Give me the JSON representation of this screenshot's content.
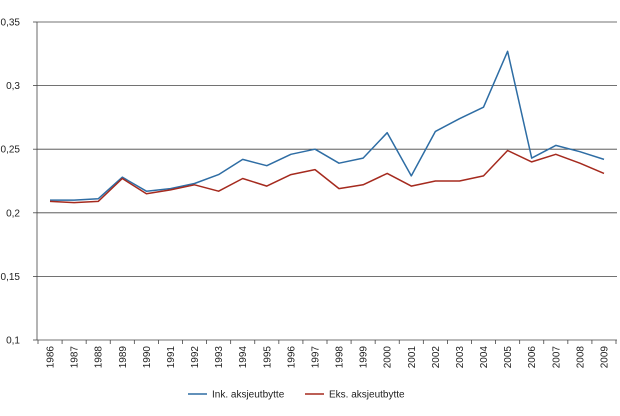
{
  "chart_data": {
    "type": "line",
    "title": "",
    "xlabel": "",
    "ylabel": "",
    "ylim": [
      0.1,
      0.35
    ],
    "yticks": [
      "0,1",
      "0,15",
      "0,2",
      "0,25",
      "0,3",
      "0,35"
    ],
    "ytick_values": [
      0.1,
      0.15,
      0.2,
      0.25,
      0.3,
      0.35
    ],
    "grid": "horizontal",
    "legend_position": "bottom",
    "categories": [
      "1986",
      "1987",
      "1988",
      "1989",
      "1990",
      "1991",
      "1992",
      "1993",
      "1994",
      "1995",
      "1996",
      "1997",
      "1998",
      "1999",
      "2000",
      "2001",
      "2002",
      "2003",
      "2004",
      "2005",
      "2006",
      "2007",
      "2008",
      "2009"
    ],
    "series": [
      {
        "name": "Ink. aksjeutbytte",
        "color": "#2e6da4",
        "values": [
          0.21,
          0.21,
          0.211,
          0.228,
          0.217,
          0.219,
          0.223,
          0.23,
          0.242,
          0.237,
          0.246,
          0.25,
          0.239,
          0.243,
          0.263,
          0.229,
          0.264,
          0.274,
          0.283,
          0.327,
          0.243,
          0.253,
          0.248,
          0.242
        ]
      },
      {
        "name": "Eks. aksjeutbytte",
        "color": "#a52a1e",
        "values": [
          0.209,
          0.208,
          0.209,
          0.227,
          0.215,
          0.218,
          0.222,
          0.217,
          0.227,
          0.221,
          0.23,
          0.234,
          0.219,
          0.222,
          0.231,
          0.221,
          0.225,
          0.225,
          0.229,
          0.249,
          0.24,
          0.246,
          0.239,
          0.231
        ]
      }
    ]
  }
}
